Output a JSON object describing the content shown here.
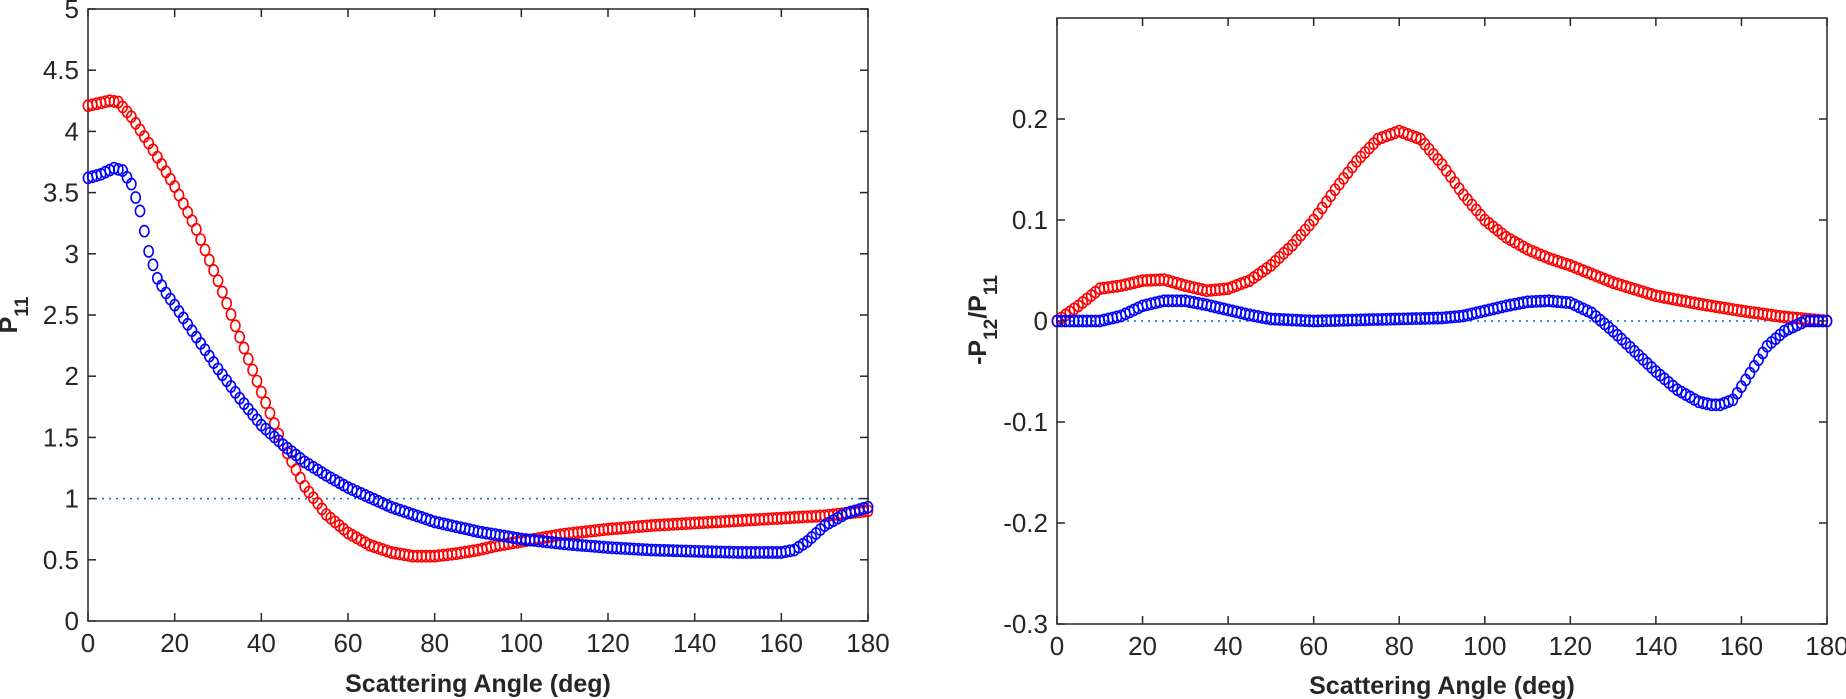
{
  "chart_data": [
    {
      "type": "scatter",
      "xlabel": "Scattering Angle (deg)",
      "ylabel": {
        "main": "P",
        "sub": "11"
      },
      "xlim": [
        0,
        180
      ],
      "ylim": [
        0,
        5
      ],
      "xticks": [
        0,
        20,
        40,
        60,
        80,
        100,
        120,
        140,
        160,
        180
      ],
      "yticks": [
        0,
        0.5,
        1,
        1.5,
        2,
        2.5,
        3,
        3.5,
        4,
        4.5,
        5
      ],
      "ytick_labels": [
        "0",
        "0.5",
        "1",
        "1.5",
        "2",
        "2.5",
        "3",
        "3.5",
        "4",
        "4.5",
        "5"
      ],
      "reference_line": 1,
      "grid": false,
      "marker": "open-circle",
      "series": [
        {
          "color": "#ff0000",
          "x": [
            0,
            5,
            7,
            10,
            15,
            20,
            25,
            30,
            35,
            40,
            45,
            50,
            55,
            60,
            65,
            70,
            75,
            80,
            85,
            90,
            95,
            100,
            105,
            110,
            120,
            130,
            140,
            150,
            160,
            170,
            175,
            180
          ],
          "y": [
            4.21,
            4.25,
            4.24,
            4.12,
            3.85,
            3.55,
            3.2,
            2.78,
            2.32,
            1.87,
            1.44,
            1.1,
            0.87,
            0.72,
            0.62,
            0.56,
            0.53,
            0.53,
            0.55,
            0.58,
            0.62,
            0.65,
            0.68,
            0.71,
            0.75,
            0.78,
            0.8,
            0.82,
            0.84,
            0.86,
            0.88,
            0.9
          ]
        },
        {
          "color": "#0000ff",
          "x": [
            0,
            3,
            6,
            8,
            10,
            12,
            14,
            16,
            18,
            20,
            25,
            30,
            35,
            40,
            45,
            50,
            55,
            60,
            70,
            80,
            90,
            100,
            110,
            120,
            130,
            140,
            150,
            160,
            163,
            166,
            170,
            175,
            180
          ],
          "y": [
            3.62,
            3.65,
            3.7,
            3.68,
            3.57,
            3.35,
            3.02,
            2.8,
            2.68,
            2.58,
            2.32,
            2.06,
            1.82,
            1.6,
            1.44,
            1.3,
            1.19,
            1.09,
            0.93,
            0.81,
            0.73,
            0.67,
            0.63,
            0.6,
            0.58,
            0.57,
            0.56,
            0.56,
            0.58,
            0.65,
            0.78,
            0.88,
            0.93
          ]
        }
      ]
    },
    {
      "type": "scatter",
      "xlabel": "Scattering Angle (deg)",
      "ylabel": {
        "p1": "-P",
        "sub1": "12",
        "mid": "/P",
        "sub2": "11"
      },
      "xlim": [
        0,
        180
      ],
      "ylim": [
        -0.3,
        0.3
      ],
      "xticks": [
        0,
        20,
        40,
        60,
        80,
        100,
        120,
        140,
        160,
        180
      ],
      "yticks": [
        -0.3,
        -0.2,
        -0.1,
        0,
        0.1,
        0.2
      ],
      "ytick_labels": [
        "-0.3",
        "-0.2",
        "-0.1",
        "0",
        "0.1",
        "0.2"
      ],
      "reference_line": 0,
      "grid": false,
      "marker": "open-circle",
      "series": [
        {
          "color": "#ff0000",
          "x": [
            0,
            5,
            10,
            15,
            20,
            25,
            30,
            35,
            40,
            45,
            50,
            55,
            60,
            65,
            70,
            75,
            80,
            85,
            90,
            95,
            100,
            105,
            110,
            115,
            120,
            130,
            140,
            150,
            160,
            170,
            180
          ],
          "y": [
            0.0,
            0.015,
            0.032,
            0.035,
            0.04,
            0.041,
            0.035,
            0.03,
            0.032,
            0.04,
            0.055,
            0.075,
            0.1,
            0.13,
            0.158,
            0.18,
            0.188,
            0.18,
            0.155,
            0.125,
            0.1,
            0.083,
            0.071,
            0.062,
            0.055,
            0.038,
            0.025,
            0.017,
            0.01,
            0.004,
            0.0
          ]
        },
        {
          "color": "#0000ff",
          "x": [
            0,
            5,
            10,
            12,
            15,
            20,
            25,
            30,
            35,
            40,
            45,
            50,
            60,
            70,
            80,
            90,
            95,
            100,
            105,
            110,
            115,
            120,
            125,
            130,
            135,
            140,
            145,
            150,
            153,
            155,
            158,
            160,
            163,
            166,
            170,
            175,
            180
          ],
          "y": [
            0.0,
            0.0,
            0.0,
            0.002,
            0.005,
            0.015,
            0.02,
            0.02,
            0.016,
            0.011,
            0.006,
            0.002,
            0.0,
            0.001,
            0.002,
            0.003,
            0.005,
            0.01,
            0.015,
            0.019,
            0.02,
            0.018,
            0.008,
            -0.01,
            -0.03,
            -0.05,
            -0.068,
            -0.08,
            -0.083,
            -0.083,
            -0.078,
            -0.065,
            -0.045,
            -0.025,
            -0.01,
            0.0,
            0.0
          ]
        }
      ]
    }
  ]
}
